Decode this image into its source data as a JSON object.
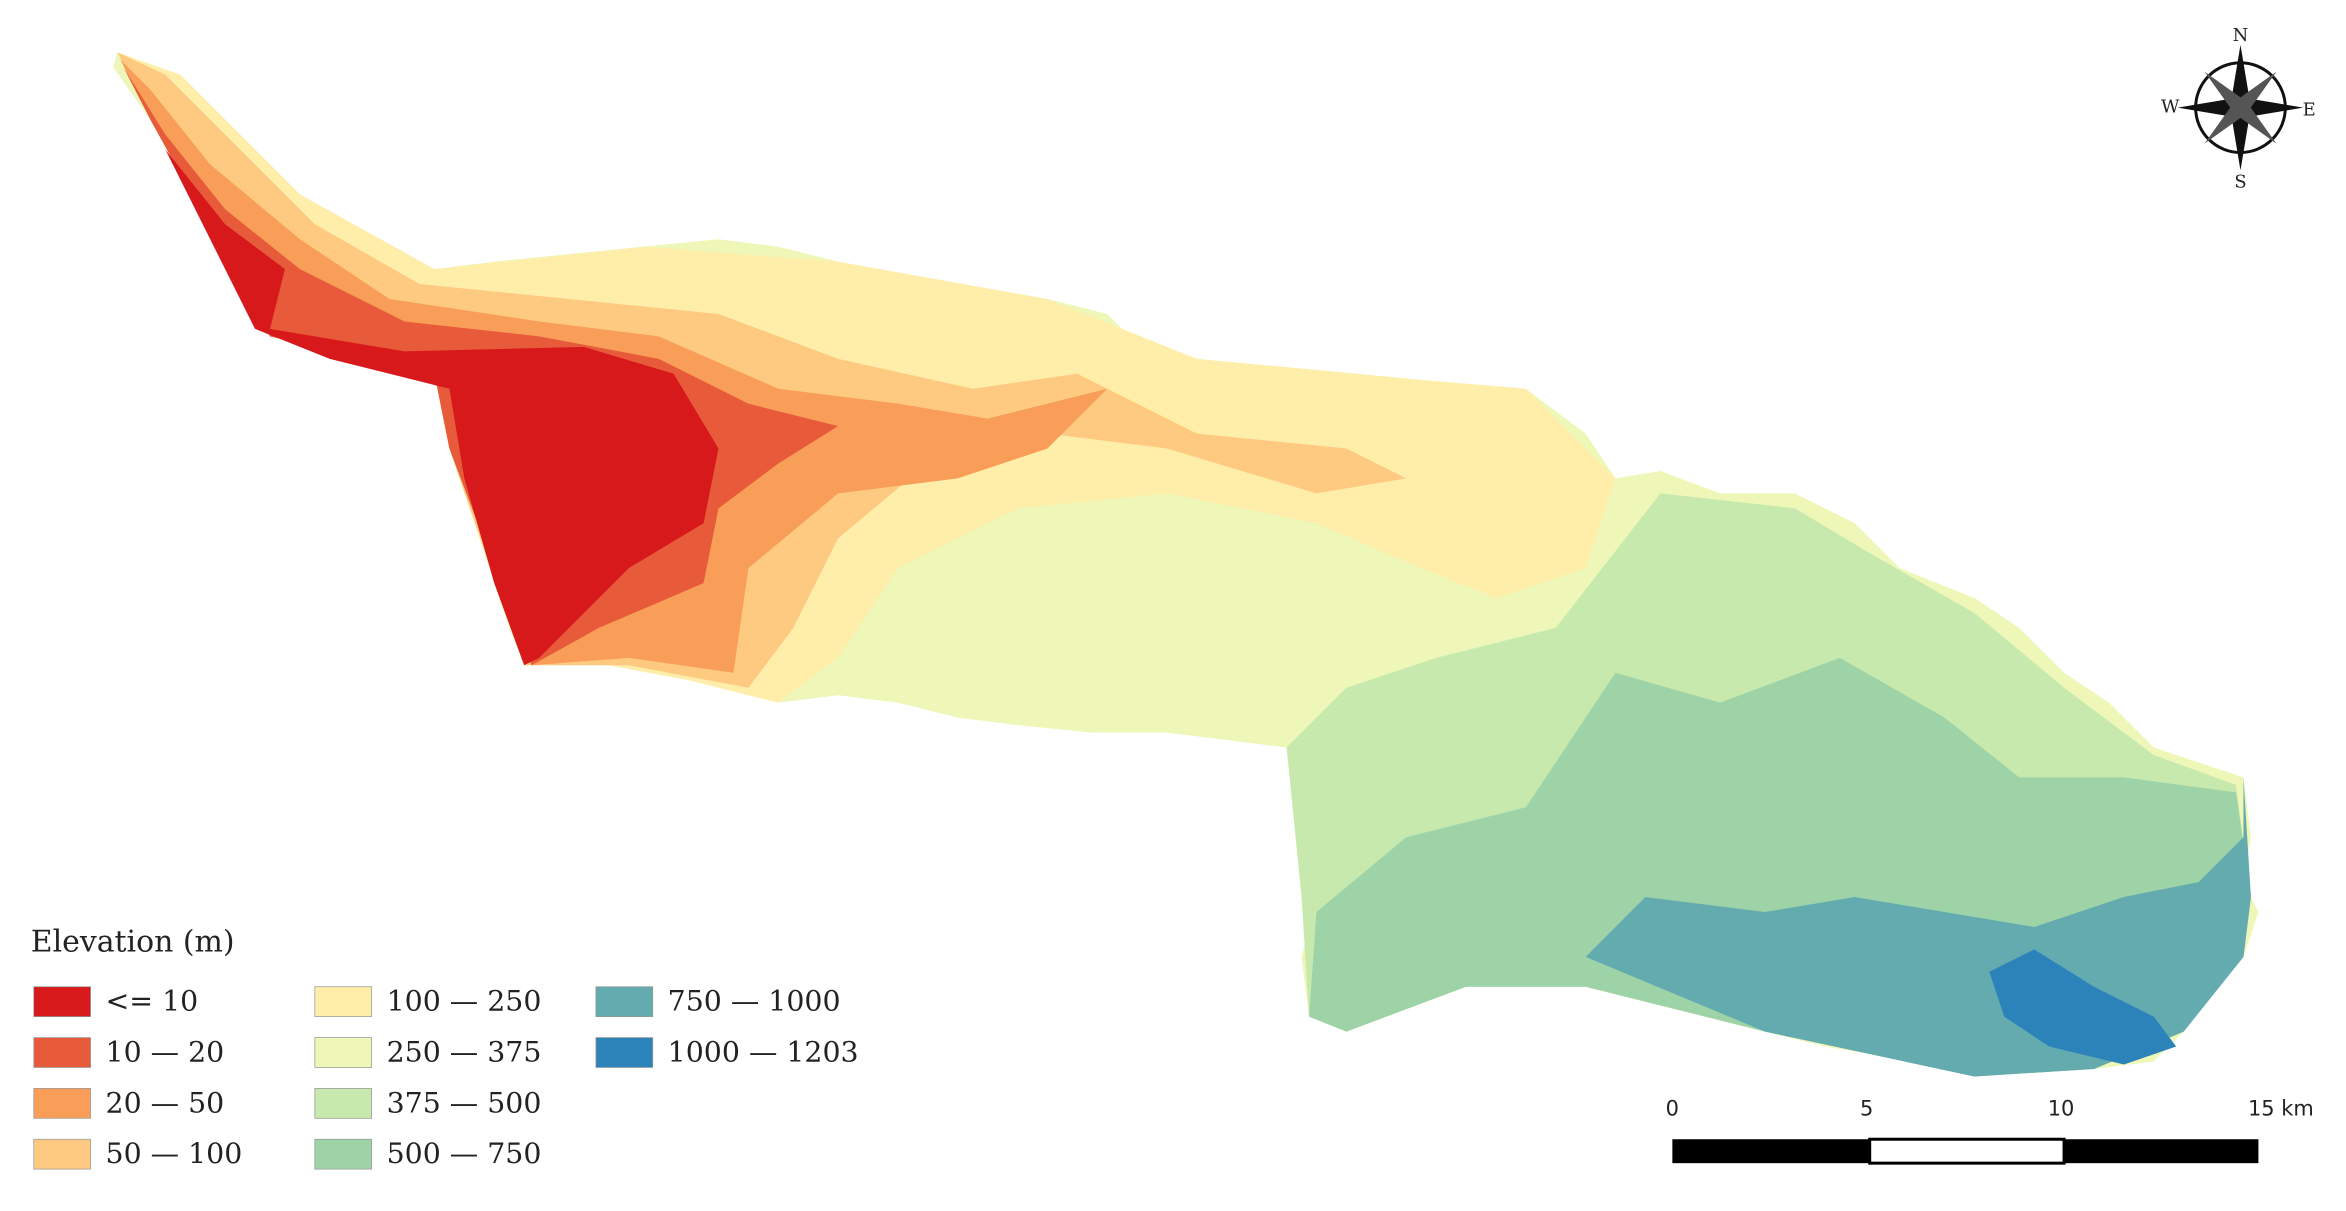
{
  "legend": {
    "title": "Elevation (m)",
    "items": [
      {
        "label": "<= 10",
        "color": "#d7191c"
      },
      {
        "label": "10 — 20",
        "color": "#e85b3a"
      },
      {
        "label": "20 — 50",
        "color": "#f99e59"
      },
      {
        "label": "50 — 100",
        "color": "#fec980"
      },
      {
        "label": "100 — 250",
        "color": "#ffedaa"
      },
      {
        "label": "250 — 375",
        "color": "#eef7b8"
      },
      {
        "label": "375 — 500",
        "color": "#c7e9ad"
      },
      {
        "label": "500 — 750",
        "color": "#9dd3a7"
      },
      {
        "label": "750 — 1000",
        "color": "#64abb0"
      },
      {
        "label": "1000 — 1203",
        "color": "#2b83ba"
      }
    ]
  },
  "compass": {
    "north": "N",
    "east": "E",
    "south": "S",
    "west": "W"
  },
  "scale_bar": {
    "labels": [
      "0",
      "5",
      "10",
      "15 km"
    ]
  }
}
